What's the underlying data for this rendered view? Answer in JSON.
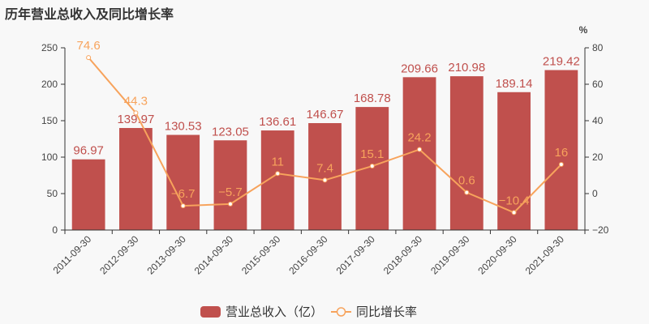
{
  "title": "历年营业总收入及同比增长率",
  "colors": {
    "bar": "#c0504d",
    "line": "#f7a35c",
    "axis": "#333333",
    "background": "#f8f8f8"
  },
  "legend": {
    "bar_label": "营业总收入（亿）",
    "line_label": "同比增长率"
  },
  "right_axis_unit": "%",
  "chart_data": {
    "type": "bar",
    "title": "历年营业总收入及同比增长率",
    "categories": [
      "2011-09-30",
      "2012-09-30",
      "2013-09-30",
      "2014-09-30",
      "2015-09-30",
      "2016-09-30",
      "2017-09-30",
      "2018-09-30",
      "2019-09-30",
      "2020-09-30",
      "2021-09-30"
    ],
    "series": [
      {
        "name": "营业总收入（亿）",
        "type": "bar",
        "axis": "left",
        "values": [
          96.97,
          139.97,
          130.53,
          123.05,
          136.61,
          146.67,
          168.78,
          209.66,
          210.98,
          189.14,
          219.42
        ]
      },
      {
        "name": "同比增长率",
        "type": "line",
        "axis": "right",
        "values": [
          74.6,
          44.3,
          -6.7,
          -5.7,
          11,
          7.4,
          15.1,
          24.2,
          0.6,
          -10.4,
          16
        ]
      }
    ],
    "left_axis": {
      "ylim": [
        0,
        250
      ],
      "ticks": [
        0,
        50,
        100,
        150,
        200,
        250
      ]
    },
    "right_axis": {
      "ylim": [
        -20,
        80
      ],
      "ticks": [
        -20,
        0,
        20,
        40,
        60,
        80
      ],
      "unit": "%"
    },
    "xlabel": "",
    "ylabel": "",
    "grid": false,
    "legend_position": "bottom"
  }
}
